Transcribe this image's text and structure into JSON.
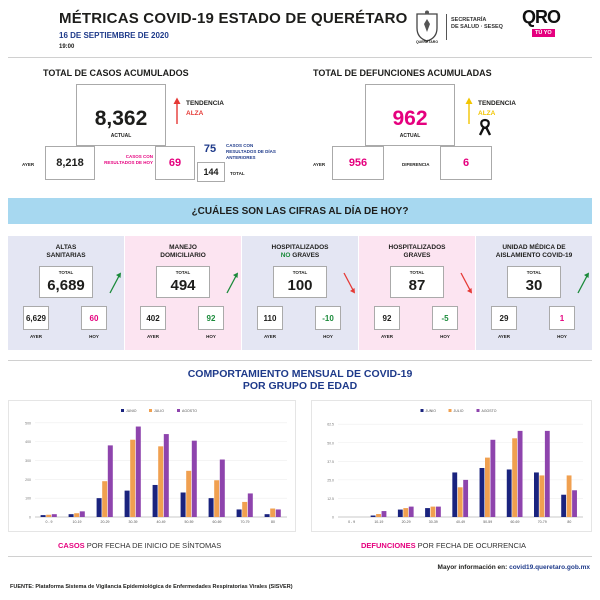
{
  "header": {
    "title": "MÉTRICAS COVID-19 ESTADO DE QUERÉTARO",
    "date": "16 DE SEPTIEMBRE DE 2020",
    "time": "19:00",
    "seal_caption": "QUERÉTARO",
    "secretaria_line1": "SECRETARÍA",
    "secretaria_line2": "DE SALUD · SESEQ",
    "brand": "QRO",
    "brand_tag": "TÚ YO"
  },
  "casos": {
    "title": "TOTAL DE CASOS ACUMULADOS",
    "actual_value": "8,362",
    "actual_label": "ACTUAL",
    "tendencia_label": "TENDENCIA",
    "tendencia_value": "ALZA",
    "ayer_label": "AYER",
    "ayer_value": "8,218",
    "hoy_label": "CASOS CON RESULTADOS DE HOY",
    "hoy_value": "69",
    "anteriores_value": "75",
    "anteriores_label": "CASOS CON RESULTADOS DE DÍAS ANTERIORES",
    "total_value": "144",
    "total_label": "TOTAL",
    "color_trend": "#e53935"
  },
  "defunciones": {
    "title": "TOTAL DE DEFUNCIONES ACUMULADAS",
    "actual_value": "962",
    "actual_label": "ACTUAL",
    "tendencia_label": "TENDENCIA",
    "tendencia_value": "ALZA",
    "ayer_label": "AYER",
    "ayer_value": "956",
    "diferencia_label": "DIFERENCIA",
    "diferencia_value": "6",
    "color_value": "#e5007e"
  },
  "banner": {
    "text": "¿CUÁLES SON LAS CIFRAS AL DÍA DE HOY?"
  },
  "panels": [
    {
      "title1": "ALTAS",
      "title2": "SANITARIAS",
      "title2_accent": "",
      "total_label": "TOTAL",
      "total": "6,689",
      "ayer": "6,629",
      "hoy": "60",
      "ayer_label": "AYER",
      "hoy_label": "HOY",
      "bg": "#e4e6f3",
      "hoy_color": "#e5007e",
      "trend": "up"
    },
    {
      "title1": "MANEJO",
      "title2": "DOMICILIARIO",
      "title2_accent": "",
      "total_label": "TOTAL",
      "total": "494",
      "ayer": "402",
      "hoy": "92",
      "ayer_label": "AYER",
      "hoy_label": "HOY",
      "bg": "#fce4f1",
      "hoy_color": "#1a8a3a",
      "trend": "up"
    },
    {
      "title1": "HOSPITALIZADOS",
      "title2": "GRAVES",
      "title2_accent": "NO",
      "total_label": "TOTAL",
      "total": "100",
      "ayer": "110",
      "hoy": "-10",
      "ayer_label": "AYER",
      "hoy_label": "HOY",
      "bg": "#e4e6f3",
      "hoy_color": "#1a8a3a",
      "trend": "down"
    },
    {
      "title1": "HOSPITALIZADOS",
      "title2": "GRAVES",
      "title2_accent": "",
      "total_label": "TOTAL",
      "total": "87",
      "ayer": "92",
      "hoy": "-5",
      "ayer_label": "AYER",
      "hoy_label": "HOY",
      "bg": "#fce4f1",
      "hoy_color": "#1a8a3a",
      "trend": "down"
    },
    {
      "title1": "UNIDAD MÉDICA DE",
      "title2": "AISLAMIENTO COVID-19",
      "title2_accent": "",
      "total_label": "TOTAL",
      "total": "30",
      "ayer": "29",
      "hoy": "1",
      "ayer_label": "AYER",
      "hoy_label": "HOY",
      "bg": "#e4e6f3",
      "hoy_color": "#e5007e",
      "trend": "up"
    }
  ],
  "section3": {
    "title1": "COMPORTAMIENTO MENSUAL DE COVID-19",
    "title2": "POR GRUPO DE EDAD"
  },
  "captions": {
    "casos_accent": "CASOS",
    "casos_rest": " POR FECHA DE INICIO DE SÍNTOMAS",
    "defunciones_accent": "DEFUNCIONES",
    "defunciones_rest": " POR FECHA DE OCURRENCIA"
  },
  "footer": {
    "more_label": "Mayor información en:",
    "more_url": "covid19.queretaro.gob.mx",
    "source": "FUENTE: Plataforma Sistema  de Vigilancia Epidemiológica de Enfermedades Respiratorias Virales (SISVER)"
  },
  "chart_data": [
    {
      "type": "bar",
      "title": "",
      "categories": [
        "0 - 9",
        "10-19",
        "20-29",
        "30-39",
        "40-49",
        "50-59",
        "60-69",
        "70-79",
        "80"
      ],
      "series": [
        {
          "name": "JUNIO",
          "color": "#1a237e",
          "values": [
            10,
            15,
            100,
            140,
            170,
            130,
            100,
            40,
            15
          ]
        },
        {
          "name": "JULIO",
          "color": "#f0a050",
          "values": [
            12,
            20,
            190,
            410,
            375,
            245,
            195,
            80,
            45
          ]
        },
        {
          "name": "AGOSTO",
          "color": "#8e44ad",
          "values": [
            15,
            30,
            380,
            480,
            440,
            405,
            305,
            125,
            40
          ]
        }
      ],
      "yticks": [
        "0",
        "100",
        "200",
        "300",
        "400",
        "500"
      ],
      "ylim": [
        0,
        520
      ]
    },
    {
      "type": "bar",
      "title": "",
      "categories": [
        "0 - 9",
        "10-19",
        "20-29",
        "30-39",
        "40-49",
        "50-59",
        "60-69",
        "70-79",
        "80"
      ],
      "series": [
        {
          "name": "JUNIO",
          "color": "#1a237e",
          "values": [
            0,
            1,
            5,
            6,
            30,
            33,
            32,
            30,
            15
          ]
        },
        {
          "name": "JULIO",
          "color": "#f0a050",
          "values": [
            0,
            2,
            6,
            7,
            20,
            40,
            53,
            28,
            28
          ]
        },
        {
          "name": "AGOSTO",
          "color": "#8e44ad",
          "values": [
            0,
            4,
            7,
            7,
            25,
            52,
            58,
            58,
            18
          ]
        }
      ],
      "yticks": [
        "0",
        "12.5",
        "25.0",
        "37.5",
        "50.0",
        "62.5"
      ],
      "ylim": [
        0,
        66
      ]
    }
  ]
}
